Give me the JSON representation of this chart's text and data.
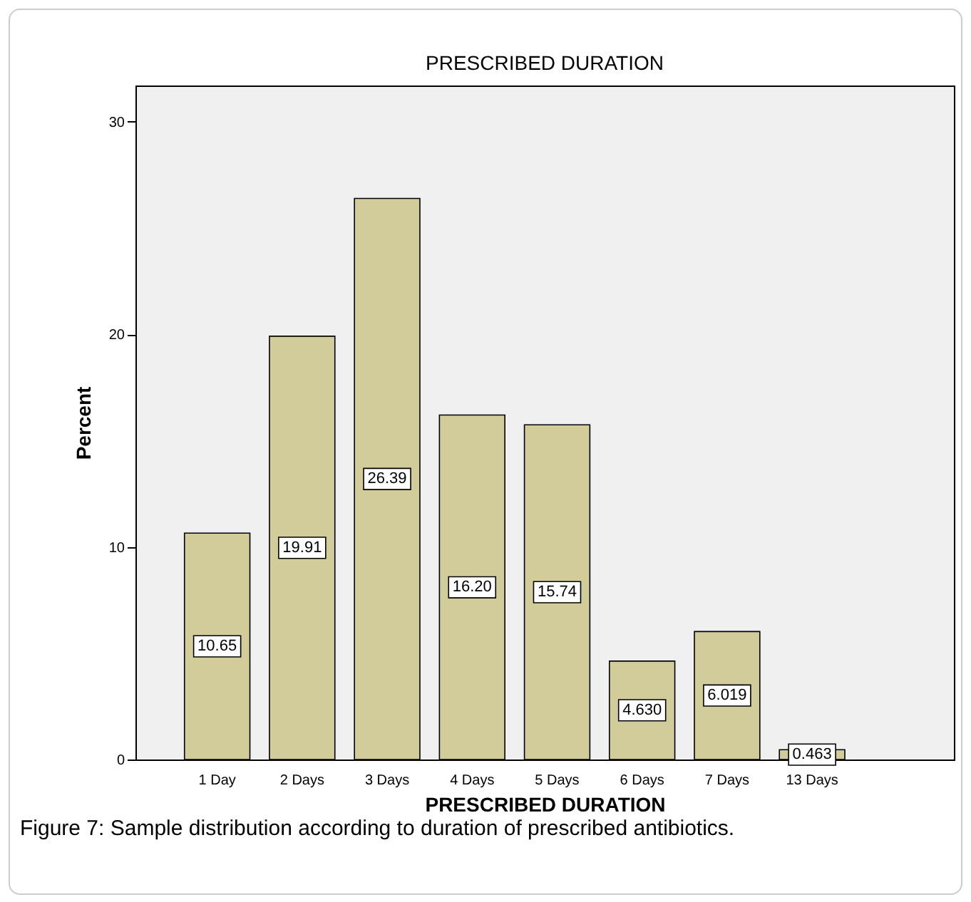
{
  "chart_data": {
    "type": "bar",
    "title": "PRESCRIBED DURATION",
    "xlabel": "PRESCRIBED DURATION",
    "ylabel": "Percent",
    "categories": [
      "1 Day",
      "2 Days",
      "3 Days",
      "4 Days",
      "5 Days",
      "6 Days",
      "7 Days",
      "13 Days"
    ],
    "values": [
      10.65,
      19.91,
      26.39,
      16.2,
      15.74,
      4.63,
      6.019,
      0.463
    ],
    "value_labels": [
      "10.65",
      "19.91",
      "26.39",
      "16.20",
      "15.74",
      "4.630",
      "6.019",
      "0.463"
    ],
    "color": "#d2cc9a",
    "ylim": [
      0,
      31.7
    ],
    "yticks": [
      0,
      10,
      20,
      30
    ],
    "grid": false,
    "annotations": [
      "Figure 7: Sample distribution according to duration of prescribed antibiotics."
    ]
  }
}
